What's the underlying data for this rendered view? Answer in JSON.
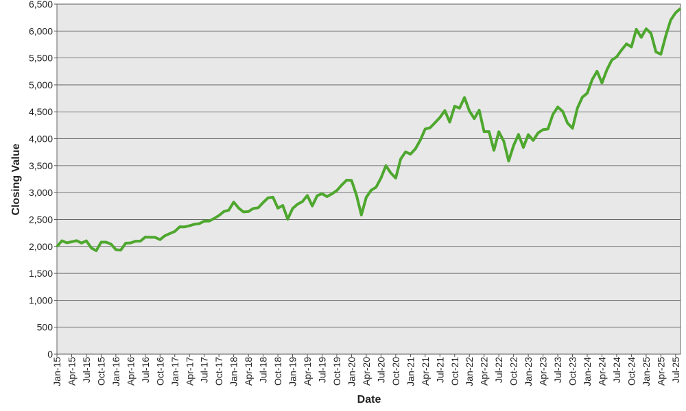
{
  "chart_data": {
    "type": "line",
    "xlabel": "Date",
    "ylabel": "Closing Value",
    "x": [
      "2015-01",
      "2015-02",
      "2015-03",
      "2015-04",
      "2015-05",
      "2015-06",
      "2015-07",
      "2015-08",
      "2015-09",
      "2015-10",
      "2015-11",
      "2015-12",
      "2016-01",
      "2016-02",
      "2016-03",
      "2016-04",
      "2016-05",
      "2016-06",
      "2016-07",
      "2016-08",
      "2016-09",
      "2016-10",
      "2016-11",
      "2016-12",
      "2017-01",
      "2017-02",
      "2017-03",
      "2017-04",
      "2017-05",
      "2017-06",
      "2017-07",
      "2017-08",
      "2017-09",
      "2017-10",
      "2017-11",
      "2017-12",
      "2018-01",
      "2018-02",
      "2018-03",
      "2018-04",
      "2018-05",
      "2018-06",
      "2018-07",
      "2018-08",
      "2018-09",
      "2018-10",
      "2018-11",
      "2018-12",
      "2019-01",
      "2019-02",
      "2019-03",
      "2019-04",
      "2019-05",
      "2019-06",
      "2019-07",
      "2019-08",
      "2019-09",
      "2019-10",
      "2019-11",
      "2019-12",
      "2020-01",
      "2020-02",
      "2020-03",
      "2020-04",
      "2020-05",
      "2020-06",
      "2020-07",
      "2020-08",
      "2020-09",
      "2020-10",
      "2020-11",
      "2020-12",
      "2021-01",
      "2021-02",
      "2021-03",
      "2021-04",
      "2021-05",
      "2021-06",
      "2021-07",
      "2021-08",
      "2021-09",
      "2021-10",
      "2021-11",
      "2021-12",
      "2022-01",
      "2022-02",
      "2022-03",
      "2022-04",
      "2022-05",
      "2022-06",
      "2022-07",
      "2022-08",
      "2022-09",
      "2022-10",
      "2022-11",
      "2022-12",
      "2023-01",
      "2023-02",
      "2023-03",
      "2023-04",
      "2023-05",
      "2023-06",
      "2023-07",
      "2023-08",
      "2023-09",
      "2023-10",
      "2023-11",
      "2023-12",
      "2024-01",
      "2024-02",
      "2024-03",
      "2024-04",
      "2024-05",
      "2024-06",
      "2024-07",
      "2024-08",
      "2024-09",
      "2024-10",
      "2024-11",
      "2024-12",
      "2025-01",
      "2025-02",
      "2025-03",
      "2025-04",
      "2025-05",
      "2025-06",
      "2025-07",
      "2025-08"
    ],
    "series": [
      {
        "name": "Closing Value",
        "color": "#4ea72e",
        "values": [
          1995,
          2105,
          2068,
          2086,
          2107,
          2063,
          2104,
          1972,
          1920,
          2079,
          2080,
          2044,
          1940,
          1932,
          2060,
          2065,
          2097,
          2099,
          2174,
          2171,
          2168,
          2126,
          2199,
          2239,
          2279,
          2364,
          2363,
          2384,
          2412,
          2423,
          2470,
          2472,
          2519,
          2575,
          2648,
          2674,
          2824,
          2714,
          2641,
          2648,
          2705,
          2718,
          2816,
          2902,
          2914,
          2712,
          2760,
          2507,
          2704,
          2784,
          2834,
          2946,
          2752,
          2942,
          2980,
          2926,
          2977,
          3038,
          3141,
          3231,
          3226,
          2954,
          2585,
          2912,
          3044,
          3100,
          3271,
          3500,
          3363,
          3270,
          3622,
          3756,
          3714,
          3811,
          3973,
          4181,
          4204,
          4298,
          4395,
          4523,
          4308,
          4605,
          4567,
          4766,
          4516,
          4374,
          4530,
          4132,
          4132,
          3785,
          4130,
          3955,
          3586,
          3872,
          4080,
          3840,
          4077,
          3970,
          4109,
          4169,
          4180,
          4450,
          4589,
          4508,
          4288,
          4194,
          4568,
          4770,
          4846,
          5096,
          5254,
          5036,
          5278,
          5460,
          5522,
          5648,
          5762,
          5705,
          6032,
          5882,
          6041,
          5955,
          5612,
          5569,
          5912,
          6205,
          6339,
          6420
        ]
      }
    ],
    "xlim": [
      "2015-01",
      "2025-08"
    ],
    "xticks": [
      {
        "value": "2015-01",
        "label": "Jan-15"
      },
      {
        "value": "2015-04",
        "label": "Apr-15"
      },
      {
        "value": "2015-07",
        "label": "Jul-15"
      },
      {
        "value": "2015-10",
        "label": "Oct-15"
      },
      {
        "value": "2016-01",
        "label": "Jan-16"
      },
      {
        "value": "2016-04",
        "label": "Apr-16"
      },
      {
        "value": "2016-07",
        "label": "Jul-16"
      },
      {
        "value": "2016-10",
        "label": "Oct-16"
      },
      {
        "value": "2017-01",
        "label": "Jan-17"
      },
      {
        "value": "2017-04",
        "label": "Apr-17"
      },
      {
        "value": "2017-07",
        "label": "Jul-17"
      },
      {
        "value": "2017-10",
        "label": "Oct-17"
      },
      {
        "value": "2018-01",
        "label": "Jan-18"
      },
      {
        "value": "2018-04",
        "label": "Apr-18"
      },
      {
        "value": "2018-07",
        "label": "Jul-18"
      },
      {
        "value": "2018-10",
        "label": "Oct-18"
      },
      {
        "value": "2019-01",
        "label": "Jan-19"
      },
      {
        "value": "2019-04",
        "label": "Apr-19"
      },
      {
        "value": "2019-07",
        "label": "Jul-19"
      },
      {
        "value": "2019-10",
        "label": "Oct-19"
      },
      {
        "value": "2020-01",
        "label": "Jan-20"
      },
      {
        "value": "2020-04",
        "label": "Apr-20"
      },
      {
        "value": "2020-07",
        "label": "Jul-20"
      },
      {
        "value": "2020-10",
        "label": "Oct-20"
      },
      {
        "value": "2021-01",
        "label": "Jan-21"
      },
      {
        "value": "2021-04",
        "label": "Apr-21"
      },
      {
        "value": "2021-07",
        "label": "Jul-21"
      },
      {
        "value": "2021-10",
        "label": "Oct-21"
      },
      {
        "value": "2022-01",
        "label": "Jan-22"
      },
      {
        "value": "2022-04",
        "label": "Apr-22"
      },
      {
        "value": "2022-07",
        "label": "Jul-22"
      },
      {
        "value": "2022-10",
        "label": "Oct-22"
      },
      {
        "value": "2023-01",
        "label": "Jan-23"
      },
      {
        "value": "2023-04",
        "label": "Apr-23"
      },
      {
        "value": "2023-07",
        "label": "Jul-23"
      },
      {
        "value": "2023-10",
        "label": "Oct-23"
      },
      {
        "value": "2024-01",
        "label": "Jan-24"
      },
      {
        "value": "2024-04",
        "label": "Apr-24"
      },
      {
        "value": "2024-07",
        "label": "Jul-24"
      },
      {
        "value": "2024-10",
        "label": "Oct-24"
      },
      {
        "value": "2025-01",
        "label": "Jan-25"
      },
      {
        "value": "2025-04",
        "label": "Apr-25"
      },
      {
        "value": "2025-07",
        "label": "Jul-25"
      }
    ],
    "ylim": [
      0,
      6500
    ],
    "yticks": [
      0,
      500,
      {
        "value": 1000,
        "label": "1,000"
      },
      {
        "value": 1500,
        "label": "1,500"
      },
      {
        "value": 2000,
        "label": "2,000"
      },
      {
        "value": 2500,
        "label": "2,500"
      },
      {
        "value": 3000,
        "label": "3,000"
      },
      {
        "value": 3500,
        "label": "3,500"
      },
      {
        "value": 4000,
        "label": "4,000"
      },
      {
        "value": 4500,
        "label": "4,500"
      },
      {
        "value": 5000,
        "label": "5,000"
      },
      {
        "value": 5500,
        "label": "5,500"
      },
      {
        "value": 6000,
        "label": "6,000"
      },
      {
        "value": 6500,
        "label": "6,500"
      }
    ],
    "grid": true,
    "background": "#e8e8e8"
  }
}
